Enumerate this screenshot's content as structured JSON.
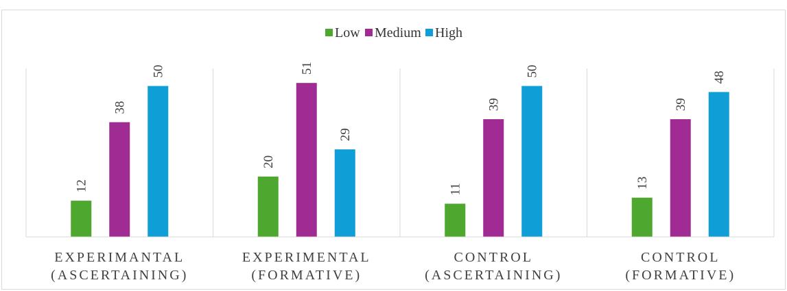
{
  "chart_data": {
    "type": "bar",
    "categories": [
      [
        "EXPERIMANTAL",
        "(ASCERTAINING)"
      ],
      [
        "EXPERIMENTAL",
        "(FORMATIVE)"
      ],
      [
        "CONTROL",
        "(ASCERTAINING)"
      ],
      [
        "CONTROL",
        "(FORMATIVE)"
      ]
    ],
    "series": [
      {
        "name": "Low",
        "color": "#4ea72e",
        "values": [
          12,
          20,
          11,
          13
        ]
      },
      {
        "name": "Medium",
        "color": "#a02b93",
        "values": [
          38,
          51,
          39,
          39
        ]
      },
      {
        "name": "High",
        "color": "#0f9ed5",
        "values": [
          50,
          29,
          50,
          48
        ]
      }
    ],
    "ylim": [
      0,
      56
    ],
    "grid": false,
    "legend_position": "top-center",
    "data_labels": "rotated-vertical"
  }
}
